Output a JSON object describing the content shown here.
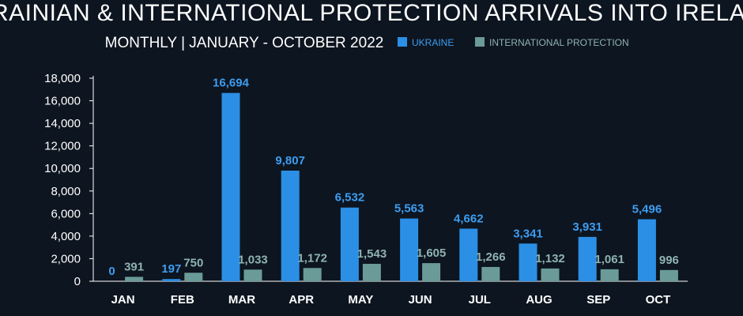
{
  "colors": {
    "background": "#0d1520",
    "ukraine": "#2b8fe6",
    "international_protection": "#6a9b98",
    "ukraine_label": "#3d9df0",
    "ip_label": "#8fb3b1",
    "axis": "#ffffff"
  },
  "chart_data": {
    "type": "bar",
    "title": "UKRAINIAN & INTERNATIONAL PROTECTION ARRIVALS INTO IRELAND",
    "subtitle": "MONTHLY | JANUARY - OCTOBER 2022",
    "categories": [
      "JAN",
      "FEB",
      "MAR",
      "APR",
      "MAY",
      "JUN",
      "JUL",
      "AUG",
      "SEP",
      "OCT"
    ],
    "series": [
      {
        "name": "UKRAINE",
        "values": [
          0,
          197,
          16694,
          9807,
          6532,
          5563,
          4662,
          3341,
          3931,
          5496
        ],
        "labels": [
          "0",
          "197",
          "16,694",
          "9,807",
          "6,532",
          "5,563",
          "4,662",
          "3,341",
          "3,931",
          "5,496"
        ]
      },
      {
        "name": "INTERNATIONAL PROTECTION",
        "values": [
          391,
          750,
          1033,
          1172,
          1543,
          1605,
          1266,
          1132,
          1061,
          996
        ],
        "labels": [
          "391",
          "750",
          "1,033",
          "1,172",
          "1,543",
          "1,605",
          "1,266",
          "1,132",
          "1,061",
          "996"
        ]
      }
    ],
    "ylim": [
      0,
      18000
    ],
    "yticks": [
      0,
      2000,
      4000,
      6000,
      8000,
      10000,
      12000,
      14000,
      16000,
      18000
    ],
    "ytick_labels": [
      "0",
      "2,000",
      "4,000",
      "6,000",
      "8,000",
      "10,000",
      "12,000",
      "14,000",
      "16,000",
      "18,000"
    ],
    "legend_position": "top-right",
    "grid": false
  }
}
